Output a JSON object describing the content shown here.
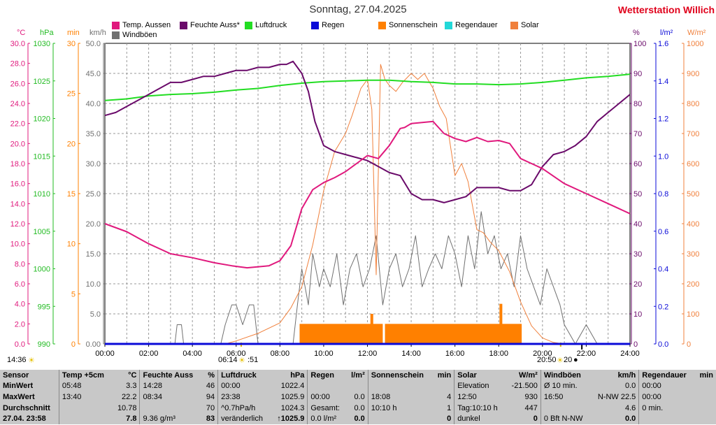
{
  "title": "Sonntag, 27.04.2025",
  "station": "Wetterstation Willich",
  "units": {
    "temp": "°C",
    "hpa": "hPa",
    "min": "min",
    "kmh": "km/h",
    "pct": "%",
    "lm2": "l/m²",
    "wm2": "W/m²"
  },
  "legend": [
    {
      "label": "Temp. Aussen",
      "color": "#e0197d"
    },
    {
      "label": "Feuchte Auss*",
      "color": "#6a0a6a"
    },
    {
      "label": "Luftdruck",
      "color": "#22dd22"
    },
    {
      "label": "Regen",
      "color": "#0a0ad8"
    },
    {
      "label": "Sonnenschein",
      "color": "#ff8000"
    },
    {
      "label": "Regendauer",
      "color": "#22d8d8"
    },
    {
      "label": "Solar",
      "color": "#f0803c"
    },
    {
      "label": "Windböen",
      "color": "#707070"
    }
  ],
  "markers": {
    "left_time": "14:36",
    "sunrise": "06:14",
    "sunrise_glyph": "☀",
    "sunrise_suffix": ":51",
    "sunset": "20:50",
    "sunset_suffix": "20",
    "moon_glyph": "●"
  },
  "chart_data": {
    "type": "line",
    "x_ticks": [
      "00:00",
      "02:00",
      "04:00",
      "06:00",
      "08:00",
      "10:00",
      "12:00",
      "14:00",
      "16:00",
      "18:00",
      "20:00",
      "22:00",
      "24:00"
    ],
    "axes": {
      "temp": {
        "unit": "°C",
        "range": [
          0,
          30
        ],
        "ticks": [
          "0.0",
          "2.0",
          "4.0",
          "6.0",
          "8.0",
          "10.0",
          "12.0",
          "14.0",
          "16.0",
          "18.0",
          "20.0",
          "22.0",
          "24.0",
          "26.0",
          "28.0",
          "30.0"
        ]
      },
      "pressure": {
        "unit": "hPa",
        "range": [
          990,
          1030
        ],
        "ticks": [
          "990",
          "995",
          "1000",
          "1005",
          "1010",
          "1015",
          "1020",
          "1025",
          "1030"
        ]
      },
      "minutes": {
        "unit": "min",
        "range": [
          0,
          30
        ],
        "ticks": [
          "0",
          "5",
          "10",
          "15",
          "20",
          "25",
          "30"
        ]
      },
      "wind": {
        "unit": "km/h",
        "range": [
          0,
          50
        ],
        "ticks": [
          "0.00",
          "5.0",
          "10.0",
          "15.0",
          "20.0",
          "25.0",
          "30.0",
          "35.0",
          "40.0",
          "45.0",
          "50.0"
        ]
      },
      "humidity": {
        "unit": "%",
        "range": [
          0,
          100
        ],
        "ticks": [
          "0",
          "10",
          "20",
          "30",
          "40",
          "50",
          "60",
          "70",
          "80",
          "90",
          "100"
        ]
      },
      "rain": {
        "unit": "l/m²",
        "range": [
          0,
          1.6
        ],
        "ticks": [
          "0.0",
          "0.2",
          "0.4",
          "0.6",
          "0.8",
          "1.0",
          "1.2",
          "1.4",
          "1.6"
        ]
      },
      "solar": {
        "unit": "W/m²",
        "range": [
          0,
          1000
        ],
        "ticks": [
          "0",
          "100",
          "200",
          "300",
          "400",
          "500",
          "600",
          "700",
          "800",
          "900",
          "1000"
        ]
      }
    },
    "series": [
      {
        "name": "Temp. Aussen",
        "axis": "temp",
        "x": [
          0,
          1,
          2,
          3,
          4,
          5,
          5.8,
          6.5,
          7.5,
          8,
          8.5,
          9,
          9.5,
          10,
          10.5,
          11,
          11.5,
          12,
          12.5,
          13,
          13.5,
          13.7,
          14,
          14.5,
          15,
          15.5,
          16,
          16.5,
          17,
          17.5,
          18,
          18.5,
          19,
          19.5,
          20,
          21,
          22,
          23,
          24
        ],
        "y": [
          12.0,
          11.2,
          10.0,
          9.0,
          8.6,
          8.1,
          7.8,
          7.6,
          7.8,
          8.3,
          9.8,
          13.5,
          15.4,
          16.1,
          16.6,
          17.2,
          18.0,
          18.8,
          18.5,
          19.8,
          21.5,
          21.6,
          22.0,
          22.1,
          22.2,
          21.0,
          20.5,
          20.2,
          20.6,
          20.2,
          20.3,
          20.0,
          18.5,
          18.0,
          17.5,
          16.0,
          15.0,
          14.0,
          13.0
        ]
      },
      {
        "name": "Feuchte Auss*",
        "axis": "humidity",
        "x": [
          0,
          0.5,
          1,
          1.5,
          2,
          2.5,
          3,
          3.5,
          4,
          4.5,
          5,
          5.5,
          6,
          6.5,
          7,
          7.5,
          8,
          8.3,
          8.6,
          9,
          9.3,
          9.6,
          10,
          10.5,
          11,
          11.5,
          12,
          12.5,
          13,
          13.5,
          14,
          14.5,
          15,
          15.5,
          16,
          16.5,
          17,
          17.5,
          18,
          18.5,
          19,
          19.5,
          20,
          20.5,
          21,
          21.5,
          22,
          22.5,
          23,
          23.5,
          24
        ],
        "y": [
          76,
          77,
          79,
          81,
          83,
          85,
          87,
          87,
          88,
          89,
          89,
          90,
          91,
          91,
          92,
          92,
          93,
          93,
          94,
          90,
          84,
          74,
          66,
          64,
          63,
          62,
          61,
          59,
          57,
          56,
          50,
          48,
          48,
          47,
          48,
          49,
          52,
          52,
          52,
          51,
          51,
          53,
          59,
          63,
          64,
          66,
          69,
          74,
          77,
          80,
          83
        ]
      },
      {
        "name": "Luftdruck",
        "axis": "pressure",
        "x": [
          0,
          1,
          2,
          3,
          4,
          5,
          6,
          7,
          8,
          9,
          10,
          11,
          12,
          13,
          14,
          15,
          16,
          17,
          18,
          19,
          20,
          21,
          22,
          23,
          24
        ],
        "y": [
          1022.4,
          1022.6,
          1023.0,
          1023.2,
          1023.3,
          1023.5,
          1023.8,
          1024.0,
          1024.4,
          1024.7,
          1024.9,
          1025.0,
          1025.1,
          1025.1,
          1024.9,
          1024.8,
          1024.6,
          1024.6,
          1024.5,
          1024.6,
          1024.8,
          1025.1,
          1025.4,
          1025.6,
          1025.9
        ]
      },
      {
        "name": "Regen",
        "axis": "rain",
        "x": [
          0,
          24
        ],
        "y": [
          0,
          0
        ]
      },
      {
        "name": "Solar",
        "axis": "solar",
        "x": [
          5.5,
          6,
          7,
          8,
          8.5,
          9,
          9.5,
          10,
          10.5,
          11,
          11.3,
          11.7,
          12,
          12.2,
          12.4,
          12.6,
          12.8,
          13,
          13.3,
          13.6,
          14,
          14.3,
          14.6,
          15,
          15.3,
          15.6,
          16,
          16.3,
          16.6,
          17,
          17.3,
          17.6,
          18,
          18.5,
          19,
          19.5,
          20,
          20.5,
          21
        ],
        "y": [
          0,
          10,
          35,
          70,
          120,
          190,
          330,
          510,
          640,
          700,
          760,
          850,
          880,
          780,
          230,
          930,
          880,
          860,
          840,
          870,
          900,
          880,
          900,
          850,
          790,
          750,
          560,
          600,
          540,
          380,
          370,
          340,
          310,
          240,
          140,
          60,
          20,
          5,
          0
        ]
      },
      {
        "name": "Windböen",
        "axis": "wind",
        "x": [
          0,
          3.2,
          3.3,
          3.5,
          3.6,
          5.3,
          5.5,
          5.8,
          6.0,
          6.3,
          6.6,
          6.8,
          7.0,
          8.6,
          8.8,
          9.0,
          9.3,
          9.5,
          9.8,
          10,
          10.3,
          10.6,
          10.9,
          11.2,
          11.5,
          11.8,
          12.1,
          12.4,
          12.7,
          13,
          13.3,
          13.6,
          13.9,
          14.2,
          14.5,
          14.8,
          15.1,
          15.4,
          15.7,
          16,
          16.3,
          16.6,
          16.9,
          17.2,
          17.5,
          17.8,
          18.1,
          18.4,
          18.7,
          19,
          19.3,
          19.6,
          19.9,
          20.2,
          20.5,
          20.8,
          21,
          21.5,
          22,
          22.5,
          23,
          24
        ],
        "y": [
          0,
          0,
          3.2,
          3.2,
          0,
          0,
          3.2,
          6.5,
          6.5,
          3.2,
          6.5,
          6.5,
          0,
          0,
          6.5,
          12.5,
          6.5,
          15,
          9.5,
          12.5,
          9.5,
          15,
          6.5,
          12.5,
          15,
          9.5,
          12.5,
          18,
          6.5,
          12.5,
          15,
          9.5,
          12.5,
          18,
          9.5,
          12.5,
          15,
          12.5,
          18,
          15,
          9.5,
          18,
          12.5,
          22,
          15,
          18,
          12.5,
          15,
          9.5,
          18,
          12.5,
          9.5,
          6.5,
          12.5,
          9.5,
          6.5,
          3.2,
          0,
          3.2,
          0,
          0,
          0
        ]
      }
    ],
    "sunshine_minutes": {
      "axis": "minutes",
      "blocks": [
        {
          "from": 8.9,
          "to": 12.7,
          "value": 2
        },
        {
          "from": 12.8,
          "to": 19.05,
          "value": 2
        }
      ],
      "spikes": [
        {
          "at": 12.2,
          "value": 3
        },
        {
          "at": 18.1,
          "value": 4
        }
      ]
    }
  },
  "table": {
    "headers": [
      "Sensor",
      "Temp +5cm",
      "°C",
      "Feuchte Auss",
      "%",
      "Luftdruck",
      "hPa",
      "Regen",
      "l/m²",
      "Sonnenschein",
      "min",
      "Solar",
      "W/m²",
      "Windböen",
      "km/h",
      "Regendauer",
      "min"
    ],
    "rows": [
      [
        "MinWert",
        "05:48",
        "3.3",
        "14:28",
        "46",
        "00:00",
        "1022.4",
        "",
        "",
        "",
        "",
        "Elevation",
        "-21.500",
        "Ø 10 min.",
        "0.0",
        "00:00",
        ""
      ],
      [
        "MaxWert",
        "13:40",
        "22.2",
        "08:34",
        "94",
        "23:38",
        "1025.9",
        "00:00",
        "0.0",
        "18:08",
        "4",
        "12:50",
        "930",
        "16:50",
        "N-NW 22.5",
        "00:00",
        ""
      ],
      [
        "Durchschnitt",
        "",
        "10.78",
        "",
        "70",
        "^0.7hPa/h",
        "1024.3",
        "Gesamt:",
        "0.0",
        "10:10 h",
        "1",
        "Tag:10:10 h",
        "447",
        "",
        "4.6",
        "0 min.",
        ""
      ],
      [
        "27.04. 23:58",
        "",
        "7.8",
        "9.36 g/m³",
        "83",
        "veränderlich",
        "↑1025.9",
        "0.0 l/m²",
        "0.0",
        "",
        "0",
        "dunkel",
        "0",
        "0 Bft N-NW",
        "0.0",
        "",
        ""
      ]
    ]
  },
  "colors": {
    "temp_axis": "#e0197d",
    "pressure_axis": "#22bb22",
    "minutes_axis": "#ff8000",
    "wind_axis": "#707070",
    "humidity_axis": "#6a0a6a",
    "rain_axis": "#0a0ad8",
    "solar_axis": "#f0803c",
    "table_bg": "#c8c8c8"
  }
}
